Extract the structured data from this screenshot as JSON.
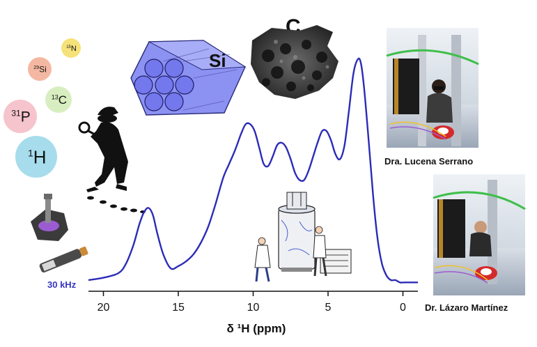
{
  "nuclei": [
    {
      "mass": "15",
      "symbol": "N",
      "color": "#f6e27a"
    },
    {
      "mass": "29",
      "symbol": "Si",
      "color": "#f4b8a2"
    },
    {
      "mass": "13",
      "symbol": "C",
      "color": "#d8eec0"
    },
    {
      "mass": "31",
      "symbol": "P",
      "color": "#f6c4cc"
    },
    {
      "mass": "1",
      "symbol": "H",
      "color": "#a6dcec"
    }
  ],
  "labels": {
    "si": "Si",
    "c": "C",
    "spin_rate": "30 kHz"
  },
  "people": [
    {
      "caption": "Dra. Lucena Serrano"
    },
    {
      "caption": "Dr. Lázaro Martínez"
    }
  ],
  "chart_data": {
    "type": "line",
    "xlabel": "δ ¹H (ppm)",
    "x_ticks": [
      20,
      15,
      10,
      5,
      0
    ],
    "xlim": [
      21,
      -1
    ],
    "ylim": [
      0,
      1.0
    ],
    "line_color": "#2b2bb8",
    "x": [
      21.0,
      20.0,
      19.0,
      18.5,
      18.0,
      17.6,
      17.3,
      17.0,
      16.7,
      16.4,
      16.0,
      15.5,
      15.0,
      14.5,
      14.0,
      13.5,
      13.0,
      12.5,
      12.0,
      11.6,
      11.2,
      10.8,
      10.5,
      10.2,
      9.9,
      9.6,
      9.3,
      9.0,
      8.7,
      8.4,
      8.1,
      7.8,
      7.5,
      7.2,
      6.9,
      6.6,
      6.3,
      6.0,
      5.7,
      5.4,
      5.1,
      4.8,
      4.5,
      4.2,
      3.9,
      3.6,
      3.3,
      3.0,
      2.8,
      2.6,
      2.3,
      2.0,
      1.7,
      1.4,
      1.1,
      0.8,
      0.5,
      0.2,
      -0.1,
      -0.5,
      -1.0
    ],
    "y": [
      0.03,
      0.04,
      0.06,
      0.1,
      0.18,
      0.27,
      0.32,
      0.34,
      0.31,
      0.23,
      0.14,
      0.08,
      0.09,
      0.11,
      0.14,
      0.19,
      0.26,
      0.36,
      0.47,
      0.53,
      0.59,
      0.66,
      0.7,
      0.7,
      0.67,
      0.6,
      0.53,
      0.52,
      0.56,
      0.61,
      0.62,
      0.6,
      0.55,
      0.49,
      0.46,
      0.46,
      0.5,
      0.56,
      0.62,
      0.67,
      0.67,
      0.63,
      0.57,
      0.55,
      0.61,
      0.76,
      0.92,
      0.98,
      0.96,
      0.86,
      0.64,
      0.4,
      0.21,
      0.1,
      0.05,
      0.03,
      0.03,
      0.02,
      0.02,
      0.02,
      0.02
    ]
  }
}
